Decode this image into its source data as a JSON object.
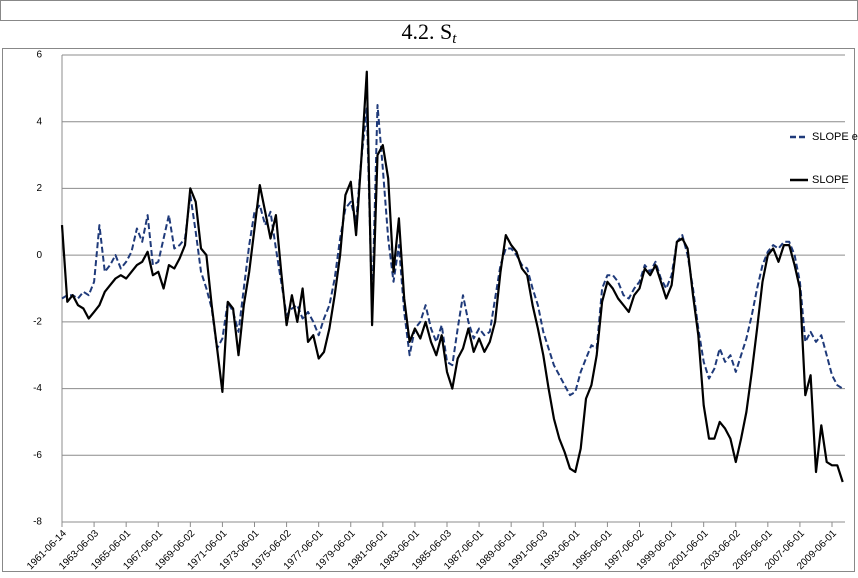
{
  "chart_data": {
    "type": "line",
    "title": "4.2. S",
    "title_subscript": "t",
    "categories": [
      "1961-06-14",
      null,
      null,
      null,
      null,
      null,
      "1963-06-03",
      null,
      null,
      null,
      null,
      null,
      "1965-06-01",
      null,
      null,
      null,
      null,
      null,
      "1967-06-01",
      null,
      null,
      null,
      null,
      null,
      "1969-06-02",
      null,
      null,
      null,
      null,
      null,
      "1971-06-01",
      null,
      null,
      null,
      null,
      null,
      "1973-06-01",
      null,
      null,
      null,
      null,
      null,
      "1975-06-02",
      null,
      null,
      null,
      null,
      null,
      "1977-06-01",
      null,
      null,
      null,
      null,
      null,
      "1979-06-01",
      null,
      null,
      null,
      null,
      null,
      "1981-06-01",
      null,
      null,
      null,
      null,
      null,
      "1983-06-01",
      null,
      null,
      null,
      null,
      null,
      "1985-06-03",
      null,
      null,
      null,
      null,
      null,
      "1987-06-01",
      null,
      null,
      null,
      null,
      null,
      "1989-06-01",
      null,
      null,
      null,
      null,
      null,
      "1991-06-03",
      null,
      null,
      null,
      null,
      null,
      "1993-06-01",
      null,
      null,
      null,
      null,
      null,
      "1995-06-01",
      null,
      null,
      null,
      null,
      null,
      "1997-06-02",
      null,
      null,
      null,
      null,
      null,
      "1999-06-01",
      null,
      null,
      null,
      null,
      null,
      "2001-06-01",
      null,
      null,
      null,
      null,
      null,
      "2003-06-02",
      null,
      null,
      null,
      null,
      null,
      "2005-06-01",
      null,
      null,
      null,
      null,
      null,
      "2007-06-01",
      null,
      null,
      null,
      null,
      null,
      "2009-06-01",
      null,
      null
    ],
    "series": [
      {
        "name": "SLOPE empirical",
        "color": "#1f3a7a",
        "dashed": true,
        "values": [
          -1.3,
          -1.2,
          -1.2,
          -1.3,
          -1.1,
          -1.2,
          -0.8,
          0.9,
          -0.5,
          -0.3,
          0.0,
          -0.4,
          -0.2,
          0.1,
          0.8,
          0.4,
          1.2,
          -0.3,
          -0.2,
          0.5,
          1.2,
          0.2,
          0.3,
          0.5,
          1.8,
          0.7,
          -0.5,
          -1.0,
          -1.6,
          -2.8,
          -2.5,
          -1.4,
          -1.7,
          -2.3,
          -1.0,
          0.3,
          1.3,
          1.5,
          0.9,
          1.3,
          0.2,
          -0.8,
          -1.8,
          -1.6,
          -1.5,
          -1.9,
          -1.7,
          -2.0,
          -2.4,
          -1.9,
          -1.5,
          -0.7,
          0.5,
          1.4,
          1.6,
          1.0,
          2.9,
          4.4,
          -1.6,
          4.5,
          2.6,
          0.5,
          -0.8,
          0.3,
          -1.7,
          -3.0,
          -2.2,
          -2.0,
          -1.5,
          -2.2,
          -2.6,
          -2.1,
          -3.2,
          -3.3,
          -2.2,
          -1.2,
          -2.0,
          -2.5,
          -2.2,
          -2.4,
          -2.3,
          -1.3,
          -0.3,
          0.2,
          0.2,
          0.0,
          -0.3,
          -0.4,
          -1.0,
          -1.5,
          -2.3,
          -2.8,
          -3.3,
          -3.6,
          -3.9,
          -4.2,
          -4.1,
          -3.5,
          -3.1,
          -2.7,
          -2.8,
          -1.0,
          -0.6,
          -0.6,
          -0.8,
          -1.2,
          -1.3,
          -1.0,
          -0.8,
          -0.3,
          -0.5,
          -0.2,
          -0.7,
          -1.0,
          -0.6,
          0.4,
          0.6,
          0.0,
          -1.0,
          -2.2,
          -3.2,
          -3.7,
          -3.4,
          -2.8,
          -3.2,
          -3.0,
          -3.5,
          -3.0,
          -2.5,
          -1.8,
          -1.0,
          -0.3,
          0.1,
          0.3,
          0.2,
          0.4,
          0.4,
          0.0,
          -0.8,
          -2.6,
          -2.3,
          -2.6,
          -2.4,
          -3.0,
          -3.6,
          -3.9,
          -4.0
        ]
      },
      {
        "name": "SLOPE",
        "color": "#000000",
        "dashed": false,
        "values": [
          0.9,
          -1.4,
          -1.2,
          -1.5,
          -1.6,
          -1.9,
          -1.7,
          -1.5,
          -1.1,
          -0.9,
          -0.7,
          -0.6,
          -0.7,
          -0.5,
          -0.3,
          -0.2,
          0.1,
          -0.6,
          -0.5,
          -1.0,
          -0.3,
          -0.4,
          -0.1,
          0.3,
          2.0,
          1.6,
          0.2,
          0.0,
          -1.5,
          -2.8,
          -4.1,
          -1.4,
          -1.6,
          -3.0,
          -1.5,
          -0.5,
          0.8,
          2.1,
          1.3,
          0.5,
          1.2,
          -0.5,
          -2.1,
          -1.2,
          -2.0,
          -1.0,
          -2.6,
          -2.4,
          -3.1,
          -2.9,
          -2.2,
          -1.2,
          0.0,
          1.8,
          2.2,
          0.6,
          2.9,
          5.5,
          -2.1,
          3.0,
          3.3,
          2.3,
          -0.5,
          1.1,
          -1.3,
          -2.6,
          -2.2,
          -2.5,
          -2.0,
          -2.6,
          -3.0,
          -2.4,
          -3.5,
          -4.0,
          -3.1,
          -2.8,
          -2.2,
          -2.9,
          -2.5,
          -2.9,
          -2.6,
          -2.0,
          -0.5,
          0.6,
          0.3,
          0.1,
          -0.4,
          -0.6,
          -1.5,
          -2.2,
          -3.0,
          -4.0,
          -4.9,
          -5.5,
          -5.9,
          -6.4,
          -6.5,
          -5.8,
          -4.3,
          -3.9,
          -3.0,
          -1.4,
          -0.8,
          -1.0,
          -1.3,
          -1.5,
          -1.7,
          -1.2,
          -1.0,
          -0.4,
          -0.6,
          -0.3,
          -0.8,
          -1.3,
          -0.9,
          0.4,
          0.5,
          0.2,
          -1.2,
          -2.4,
          -4.5,
          -5.5,
          -5.5,
          -5.0,
          -5.2,
          -5.5,
          -6.2,
          -5.5,
          -4.7,
          -3.5,
          -2.2,
          -0.8,
          0.0,
          0.2,
          -0.2,
          0.3,
          0.3,
          -0.3,
          -1.0,
          -4.2,
          -3.6,
          -6.5,
          -5.1,
          -6.2,
          -6.3,
          -6.3,
          -6.8
        ]
      }
    ],
    "ylim": [
      -8,
      6
    ],
    "yticks": [
      -8,
      -6,
      -4,
      -2,
      0,
      2,
      4,
      6
    ],
    "grid": true,
    "legend": "right"
  }
}
